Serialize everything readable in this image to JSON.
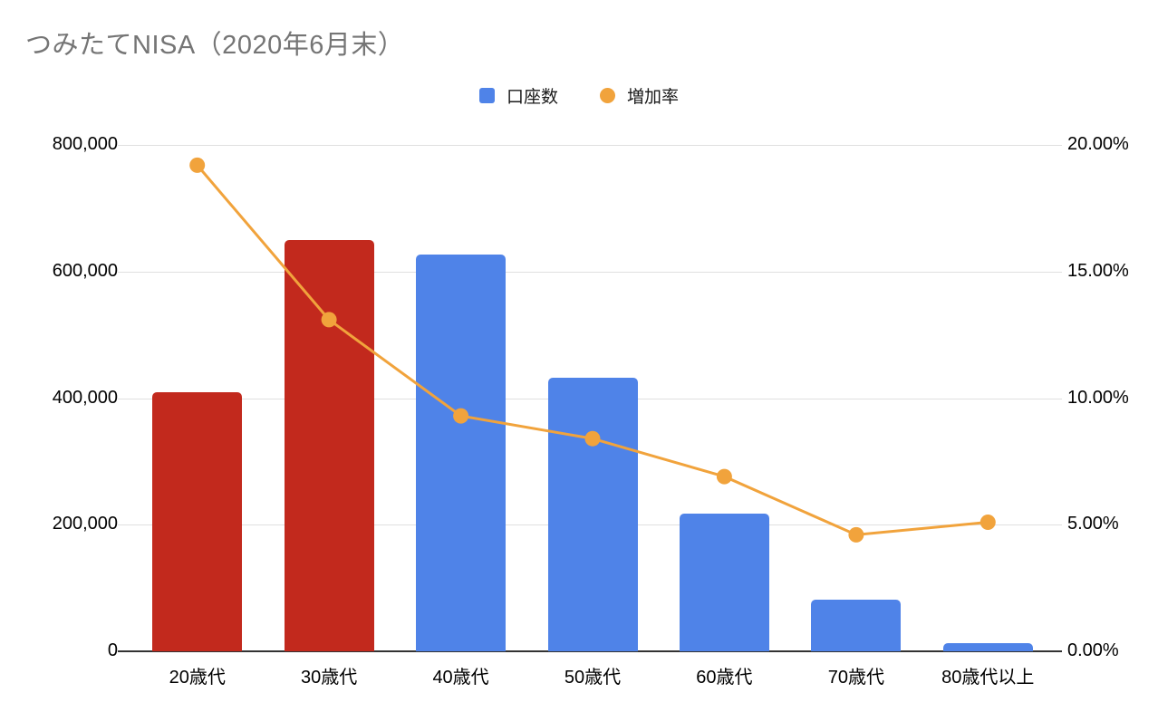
{
  "title": "つみたてNISA（2020年6月末）",
  "legend": [
    {
      "label": "口座数",
      "marker": "square",
      "color": "#4f83e8"
    },
    {
      "label": "増加率",
      "marker": "circle",
      "color": "#f1a33c"
    }
  ],
  "colors": {
    "bar_blue": "#4f83e8",
    "bar_red": "#c2291d",
    "line_orange": "#f1a33c",
    "gridline": "#e0e0e0",
    "axis_line": "#333333",
    "title_gray": "#757575",
    "label_black": "#000000"
  },
  "chart_data": {
    "type": "bar",
    "subtype": "combo-bar-line-dual-axis",
    "title": "つみたてNISA（2020年6月末）",
    "categories": [
      "20歳代",
      "30歳代",
      "40歳代",
      "50歳代",
      "60歳代",
      "70歳代",
      "80歳代以上"
    ],
    "series": [
      {
        "name": "口座数",
        "type": "bar",
        "axis": "left",
        "values": [
          410000,
          650000,
          627000,
          432000,
          218000,
          81000,
          13000
        ],
        "bar_colors": [
          "#c2291d",
          "#c2291d",
          "#4f83e8",
          "#4f83e8",
          "#4f83e8",
          "#4f83e8",
          "#4f83e8"
        ]
      },
      {
        "name": "増加率",
        "type": "line",
        "axis": "right",
        "values": [
          19.2,
          13.1,
          9.3,
          8.4,
          6.9,
          4.6,
          5.1
        ],
        "color": "#f1a33c"
      }
    ],
    "left_axis": {
      "min": 0,
      "max": 800000,
      "ticks": [
        "0",
        "200,000",
        "400,000",
        "600,000",
        "800,000"
      ]
    },
    "right_axis": {
      "min": 0,
      "max": 20,
      "ticks": [
        "0.00%",
        "5.00%",
        "10.00%",
        "15.00%",
        "20.00%"
      ]
    },
    "grid": true,
    "legend_position": "top"
  }
}
